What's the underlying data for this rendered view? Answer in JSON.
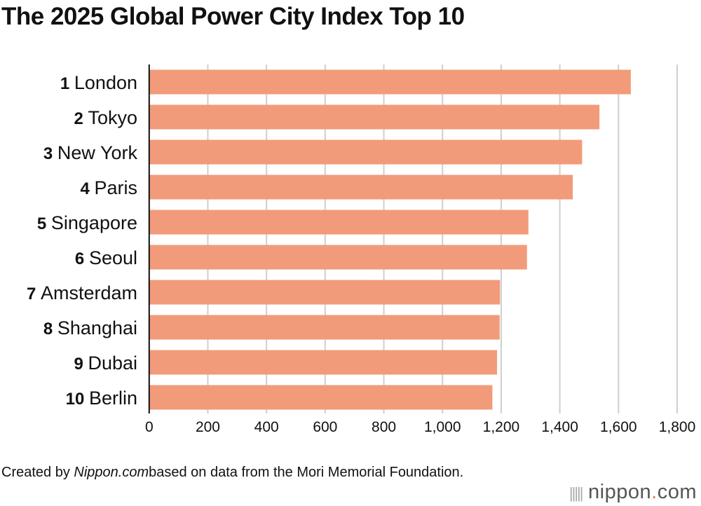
{
  "title": "The 2025 Global Power City Index Top 10",
  "footer": {
    "prefix": "Created by ",
    "source_site": "Nippon.com",
    "suffix": " based on data from the Mori Memorial Foundation."
  },
  "logo": "nippon.com",
  "chart_data": {
    "type": "bar",
    "orientation": "horizontal",
    "title": "The 2025 Global Power City Index Top 10",
    "ranks": [
      "1",
      "2",
      "3",
      "4",
      "5",
      "6",
      "7",
      "8",
      "9",
      "10"
    ],
    "categories": [
      "London",
      "Tokyo",
      "New York",
      "Paris",
      "Singapore",
      "Seoul",
      "Amsterdam",
      "Shanghai",
      "Dubai",
      "Berlin"
    ],
    "values": [
      1642,
      1535,
      1476,
      1444,
      1293,
      1288,
      1196,
      1195,
      1186,
      1170
    ],
    "xlim": [
      0,
      1800
    ],
    "xticks": [
      0,
      200,
      400,
      600,
      800,
      1000,
      1200,
      1400,
      1600,
      1800
    ],
    "xtick_labels": [
      "0",
      "200",
      "400",
      "600",
      "800",
      "1,000",
      "1,200",
      "1,400",
      "1,600",
      "1,800"
    ],
    "grid": true,
    "bar_color": "#f29b7a"
  }
}
